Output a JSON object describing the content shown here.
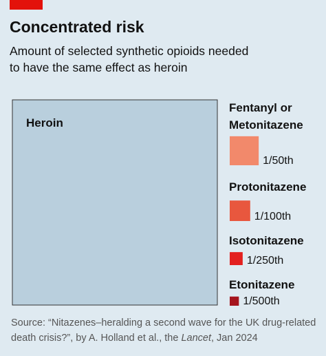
{
  "chart_data": {
    "type": "area-square",
    "title": "Concentrated risk",
    "subtitle": [
      "Amount of selected synthetic opioids needed",
      "to have the same effect as heroin"
    ],
    "categories": [
      "Heroin",
      "Fentanyl or Metonitazene",
      "Protonitazene",
      "Isotonitazene",
      "Etonitazene"
    ],
    "values": [
      1,
      0.02,
      0.01,
      0.004,
      0.002
    ],
    "value_labels": [
      null,
      "1/50th",
      "1/100th",
      "1/250th",
      "1/500th"
    ],
    "colors": [
      "#b9cfdd",
      "#f2896b",
      "#e8573e",
      "#e3201f",
      "#a5141d"
    ],
    "source": {
      "prefix": "Source: “Nitazenes–heralding a second wave for the UK drug-related death crisis?”, by A. Holland et al., the ",
      "journal": "Lancet",
      "suffix": ", Jan 2024"
    }
  }
}
